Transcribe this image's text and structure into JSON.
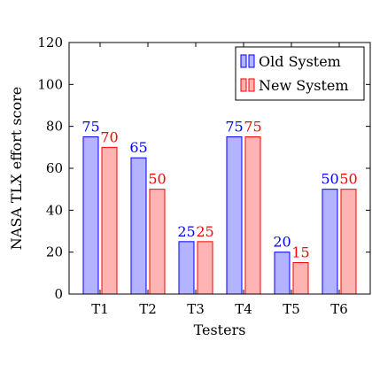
{
  "chart_data": {
    "type": "bar",
    "categories": [
      "T1",
      "T2",
      "T3",
      "T4",
      "T5",
      "T6"
    ],
    "series": [
      {
        "name": "Old System",
        "values": [
          75,
          65,
          25,
          75,
          20,
          50
        ],
        "fill": "#b3b3ff",
        "stroke": "#0000ff"
      },
      {
        "name": "New System",
        "values": [
          70,
          50,
          25,
          75,
          15,
          50
        ],
        "fill": "#ffb3b3",
        "stroke": "#ff0000"
      }
    ],
    "title": "",
    "xlabel": "Testers",
    "ylabel": "NASA TLX effort score",
    "ylim": [
      0,
      120
    ],
    "yticks": [
      0,
      20,
      40,
      60,
      80,
      100,
      120
    ],
    "grid": false,
    "legend_position": "top-right",
    "data_labels": true
  }
}
